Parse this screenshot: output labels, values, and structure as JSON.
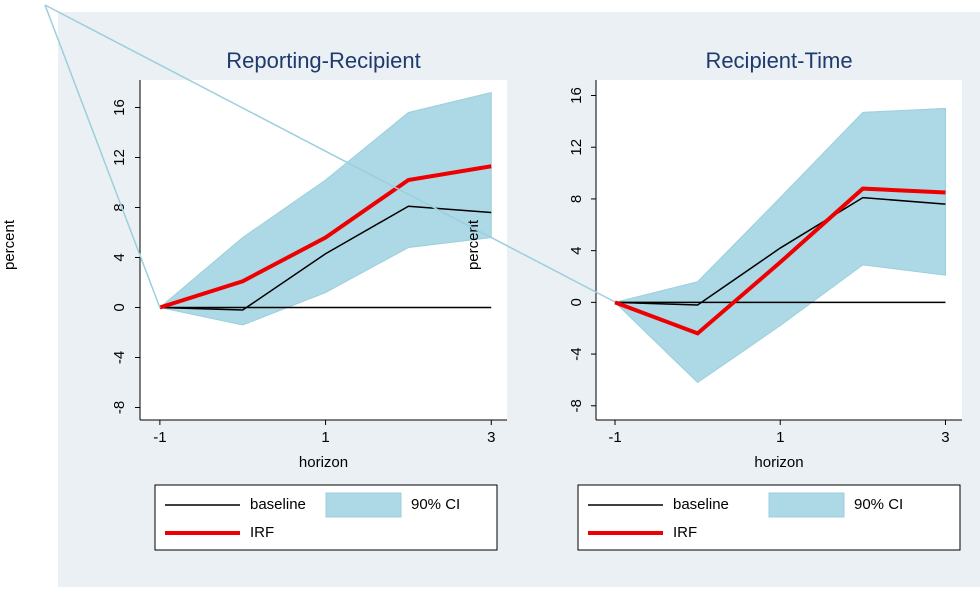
{
  "chart_data": [
    {
      "type": "line",
      "title": "Reporting-Recipient",
      "xlabel": "horizon",
      "ylabel": "percent",
      "x": [
        -1,
        0,
        1,
        2,
        3
      ],
      "xlim": [
        -1.24,
        3.19
      ],
      "xticks": [
        -1,
        1,
        3
      ],
      "ylim": [
        -9,
        18.2
      ],
      "yticks": [
        -8,
        -4,
        0,
        4,
        8,
        12,
        16
      ],
      "hline": 0,
      "series": [
        {
          "name": "baseline",
          "color": "#000000",
          "values": [
            0,
            -0.2,
            4.3,
            8.1,
            7.6
          ]
        },
        {
          "name": "IRF",
          "color": "#ee0000",
          "values": [
            0,
            2.1,
            5.6,
            10.2,
            11.3
          ]
        },
        {
          "name": "90% CI",
          "color": "#add8e6",
          "upper": [
            0,
            5.6,
            10.2,
            15.6,
            17.2
          ],
          "lower": [
            0,
            -1.4,
            1.2,
            4.8,
            5.6
          ]
        }
      ]
    },
    {
      "type": "line",
      "title": "Recipient-Time",
      "xlabel": "horizon",
      "ylabel": "percent",
      "x": [
        -1,
        0,
        1,
        2,
        3
      ],
      "xlim": [
        -1.23,
        3.2
      ],
      "xticks": [
        -1,
        1,
        3
      ],
      "ylim": [
        -9.1,
        17.2
      ],
      "yticks": [
        -8,
        -4,
        0,
        4,
        8,
        12,
        16
      ],
      "hline": 0,
      "series": [
        {
          "name": "baseline",
          "color": "#000000",
          "values": [
            0,
            -0.2,
            4.2,
            8.1,
            7.6
          ]
        },
        {
          "name": "IRF",
          "color": "#ee0000",
          "values": [
            0,
            -2.4,
            3.1,
            8.8,
            8.5
          ]
        },
        {
          "name": "90% CI",
          "color": "#add8e6",
          "upper": [
            0,
            1.6,
            8.1,
            14.7,
            15.0
          ],
          "lower": [
            0,
            -6.2,
            -1.8,
            2.9,
            2.1
          ]
        }
      ]
    }
  ]
}
